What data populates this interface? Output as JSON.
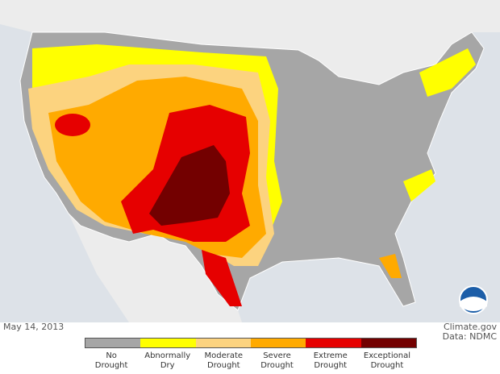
{
  "map": {
    "date": "May 14, 2013",
    "credit": "Climate.gov",
    "source": "Data: NDMC"
  },
  "legend": {
    "items": [
      {
        "label": "No Drought",
        "color": "#a6a6a6"
      },
      {
        "label": "Abnormally Dry",
        "color": "#ffff00"
      },
      {
        "label": "Moderate Drought",
        "color": "#fcd37f"
      },
      {
        "label": "Severe Drought",
        "color": "#ffaa00"
      },
      {
        "label": "Extreme Drought",
        "color": "#e60000"
      },
      {
        "label": "Exceptional Drought",
        "color": "#730000"
      }
    ]
  }
}
